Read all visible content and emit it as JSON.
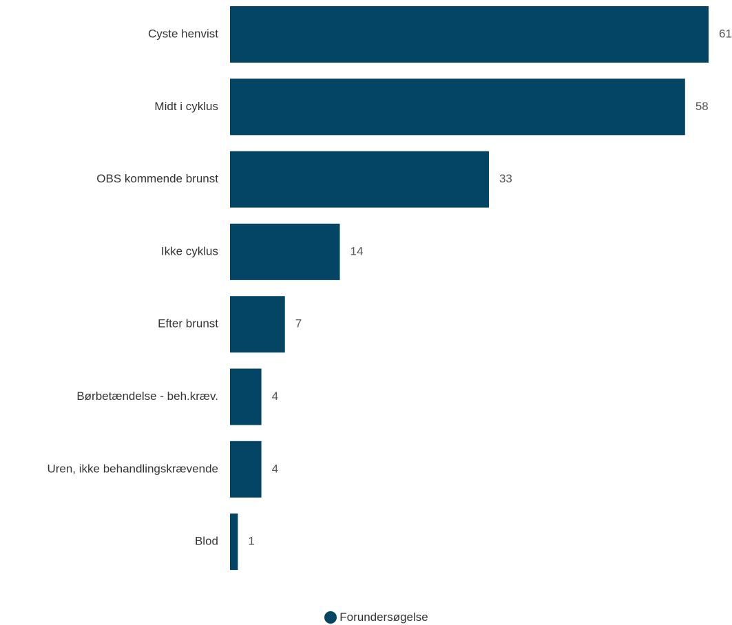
{
  "chart_data": {
    "type": "bar",
    "orientation": "horizontal",
    "categories": [
      "Cyste henvist",
      "Midt i cyklus",
      "OBS kommende brunst",
      "Ikke cyklus",
      "Efter brunst",
      "Børbetændelse - beh.kræv.",
      "Uren, ikke behandlingskrævende",
      "Blod"
    ],
    "series": [
      {
        "name": "Forundersøgelse",
        "values": [
          61,
          58,
          33,
          14,
          7,
          4,
          4,
          1
        ],
        "color": "#044465"
      }
    ],
    "value_labels": [
      "61",
      "58",
      "33",
      "14",
      "7",
      "4",
      "4",
      "1"
    ],
    "xlim": [
      0,
      61
    ],
    "grid": false,
    "legend_position": "bottom-center"
  },
  "legend": {
    "label": "Forundersøgelse"
  }
}
